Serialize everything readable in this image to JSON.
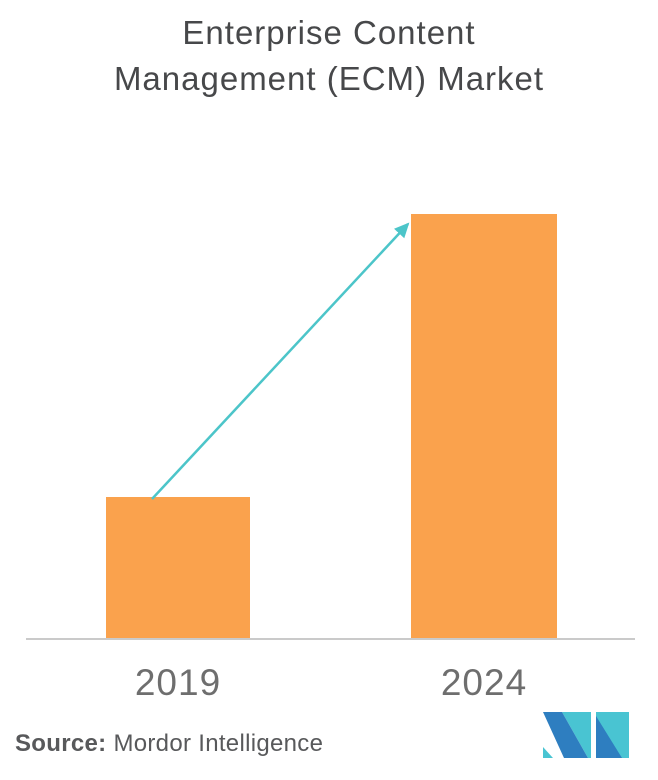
{
  "title": {
    "line1": "Enterprise Content",
    "line2": "Management (ECM) Market"
  },
  "chart_data": {
    "type": "bar",
    "title": "Enterprise Content Management (ECM) Market",
    "categories": [
      "2019",
      "2024"
    ],
    "values": [
      33.4,
      100
    ],
    "values_note": "relative bar heights (% of 2024 bar); chart shows no numeric y-axis or gridlines",
    "xlabel": "",
    "ylabel": "",
    "grid": false,
    "legend": false,
    "annotations": [
      {
        "type": "arrow",
        "from": "top of 2019 bar",
        "to": "top of 2024 bar",
        "meaning": "market growth 2019 to 2024"
      }
    ]
  },
  "source": {
    "label": "Source:",
    "value": "Mordor Intelligence"
  },
  "logo": {
    "name": "mordor-intelligence-logo"
  },
  "colors": {
    "background": "#FFFFFF",
    "bar": "#FAA24D",
    "arrow": "#4CC5C9",
    "axis_line": "#CACACA",
    "title_text": "#47484A",
    "axis_label_text": "#6E6E6E",
    "source_text": "#58595B",
    "logo_blue": "#2E7EC0",
    "logo_teal": "#49C4D2"
  }
}
